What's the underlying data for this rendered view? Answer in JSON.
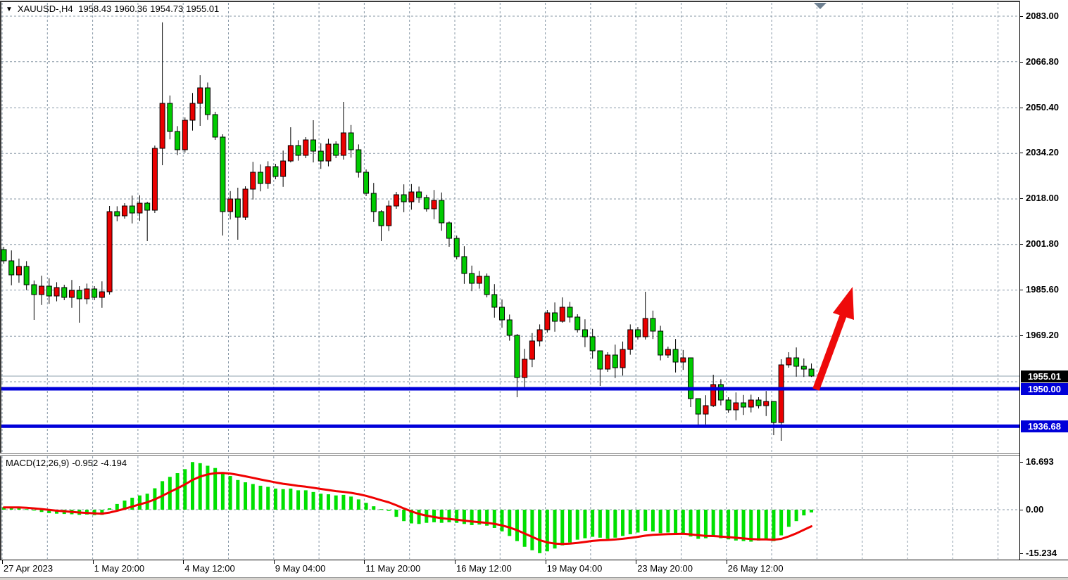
{
  "title": {
    "dropdown_icon": "▼",
    "symbol_period": "XAUUSD-,H4",
    "open": "1958.43",
    "high": "1960.36",
    "low": "1954.73",
    "close": "1955.01"
  },
  "macd_label": {
    "name": "MACD(12,26,9)",
    "macd_value": "-0.952",
    "signal_value": "-4.194"
  },
  "price_axis": {
    "labels": [
      "2083.00",
      "2066.80",
      "2050.40",
      "2034.20",
      "2018.00",
      "2001.80",
      "1985.60",
      "1969.20"
    ],
    "badges": [
      {
        "text": "1955.01",
        "bg": "#000000",
        "role": "current-price"
      },
      {
        "text": "1950.00",
        "bg": "#0000d9",
        "role": "horizontal-line-level"
      },
      {
        "text": "1936.68",
        "bg": "#0000d9",
        "role": "horizontal-line-level"
      }
    ]
  },
  "macd_axis": {
    "labels": [
      "16.693",
      "0.00",
      "-15.234"
    ]
  },
  "time_axis": {
    "labels": [
      "27 Apr 2023",
      "1 May 20:00",
      "4 May 12:00",
      "9 May 04:00",
      "11 May 20:00",
      "16 May 12:00",
      "19 May 04:00",
      "23 May 20:00",
      "26 May 12:00"
    ]
  },
  "chart_data": {
    "type": "candlestick_with_macd_histogram",
    "symbol": "XAUUSD-",
    "timeframe": "H4",
    "current_ohlc": {
      "open": 1958.43,
      "high": 1960.36,
      "low": 1954.73,
      "close": 1955.01
    },
    "price_axis_gridlines": [
      2083.0,
      2066.8,
      2050.4,
      2034.2,
      2018.0,
      2001.8,
      1985.6,
      1969.2,
      1953.0,
      1936.8
    ],
    "price_grid_step": 16.2,
    "current_price_line": 1955.01,
    "horizontal_lines": [
      1950.0,
      1936.68
    ],
    "annotation_arrow": {
      "direction": "up",
      "color": "#ee0a0a",
      "from_price": 1950.0,
      "to_price": 1986.0
    },
    "colors": {
      "bullish_body": "#ea0000",
      "bearish_body": "#00cb00",
      "wick": "#000000",
      "histogram": "#00e000",
      "signal_line": "#f00000",
      "horizontal_line": "#0000d9",
      "grid": "#8797a6",
      "current_price_line_color": "#8fa0ae"
    },
    "first_open": 2000,
    "closes": [
      1996,
      1991,
      1994,
      1987.5,
      1984,
      1987,
      1983.5,
      1986.5,
      1983,
      1985.5,
      1982.5,
      1986,
      1983,
      1985,
      2013.5,
      2012,
      2015.5,
      2013,
      2016.5,
      2014,
      2036,
      2052,
      2042,
      2035.5,
      2046,
      2052,
      2057.5,
      2048,
      2040,
      2013.5,
      2018,
      2011.5,
      2021.5,
      2027.5,
      2023.5,
      2029.5,
      2026,
      2031.5,
      2037,
      2033.5,
      2039,
      2035,
      2031.5,
      2037.5,
      2033.5,
      2041.5,
      2035.5,
      2027.5,
      2020,
      2013.5,
      2008.5,
      2015.5,
      2019.5,
      2017,
      2020.5,
      2018.5,
      2014.5,
      2017.5,
      2009.5,
      2004,
      1997.5,
      1991.5,
      1988,
      1990.5,
      1984,
      1979.5,
      1975,
      1969.5,
      1954.5,
      1961,
      1967.5,
      1971.5,
      1977.5,
      1974.5,
      1979.5,
      1976,
      1971.5,
      1969,
      1964,
      1957.5,
      1962.5,
      1958,
      1964.5,
      1971.5,
      1969,
      1975.5,
      1971,
      1962.5,
      1964.5,
      1960,
      1961.5,
      1947,
      1941.5,
      1944.5,
      1952,
      1946.5,
      1943,
      1945.5,
      1944,
      1946.5,
      1944.5,
      1946,
      1938.5,
      1959,
      1961.5,
      1958.5,
      1957.5,
      1955.01
    ],
    "wick_overrides": {
      "4": [
        1989,
        1975
      ],
      "10": [
        1987,
        1974
      ],
      "14": [
        2015.5,
        1984
      ],
      "19": [
        2017,
        2003
      ],
      "21": [
        2080.8,
        2030
      ],
      "26": [
        2062,
        2044
      ],
      "29": [
        2041,
        2005
      ],
      "31": [
        2022,
        2003.5
      ],
      "38": [
        2043.5,
        2031
      ],
      "41": [
        2046,
        2031
      ],
      "45": [
        2052.5,
        2032
      ],
      "50": [
        2014,
        2003
      ],
      "59": [
        2010,
        2001
      ],
      "68": [
        1970,
        1947.5
      ],
      "74": [
        1983,
        1974
      ],
      "79": [
        1964,
        1951.5
      ],
      "85": [
        1985,
        1968
      ],
      "91": [
        1961.5,
        1944
      ],
      "92": [
        1944,
        1937.5
      ],
      "94": [
        1955.5,
        1944
      ],
      "102": [
        1946,
        1934
      ],
      "103": [
        1961,
        1932
      ],
      "104": [
        1963.5,
        1958
      ],
      "107": [
        1959.5,
        1954.7
      ]
    },
    "macd_settings": "12,26,9",
    "macd_range": [
      -15.234,
      16.693
    ],
    "macd": [
      0.8,
      0.9,
      0.6,
      0.2,
      -0.3,
      -0.8,
      -1.2,
      -1.4,
      -1.5,
      -1.6,
      -1.8,
      -1.7,
      -1.9,
      -1.8,
      0.5,
      2.0,
      3.2,
      4.2,
      5.0,
      5.6,
      7.5,
      10.0,
      11.5,
      12.8,
      14.2,
      16.693,
      16.3,
      15.4,
      14.6,
      13.2,
      11.8,
      10.4,
      9.6,
      9.0,
      8.4,
      8.0,
      7.4,
      7.2,
      7.4,
      6.8,
      6.8,
      6.2,
      5.6,
      5.4,
      5.0,
      5.2,
      4.6,
      3.6,
      2.4,
      1.2,
      0.2,
      -0.4,
      -2.5,
      -4.0,
      -4.8,
      -5.0,
      -4.6,
      -4.4,
      -4.6,
      -4.4,
      -4.6,
      -5.0,
      -5.4,
      -5.2,
      -5.6,
      -6.4,
      -7.6,
      -9.2,
      -11.0,
      -13.0,
      -14.2,
      -15.234,
      -14.6,
      -13.6,
      -12.5,
      -11.5,
      -10.5,
      -10.0,
      -9.5,
      -9.8,
      -10.2,
      -9.8,
      -9.2,
      -8.6,
      -8.0,
      -7.4,
      -7.6,
      -8.2,
      -8.0,
      -8.4,
      -8.2,
      -9.4,
      -10.2,
      -10.0,
      -9.6,
      -10.0,
      -10.4,
      -10.8,
      -11.0,
      -11.2,
      -10.8,
      -10.4,
      -11.0,
      -9.0,
      -6.0,
      -4.0,
      -2.0,
      -0.952
    ],
    "signal_type": "ema9_of_macd"
  }
}
